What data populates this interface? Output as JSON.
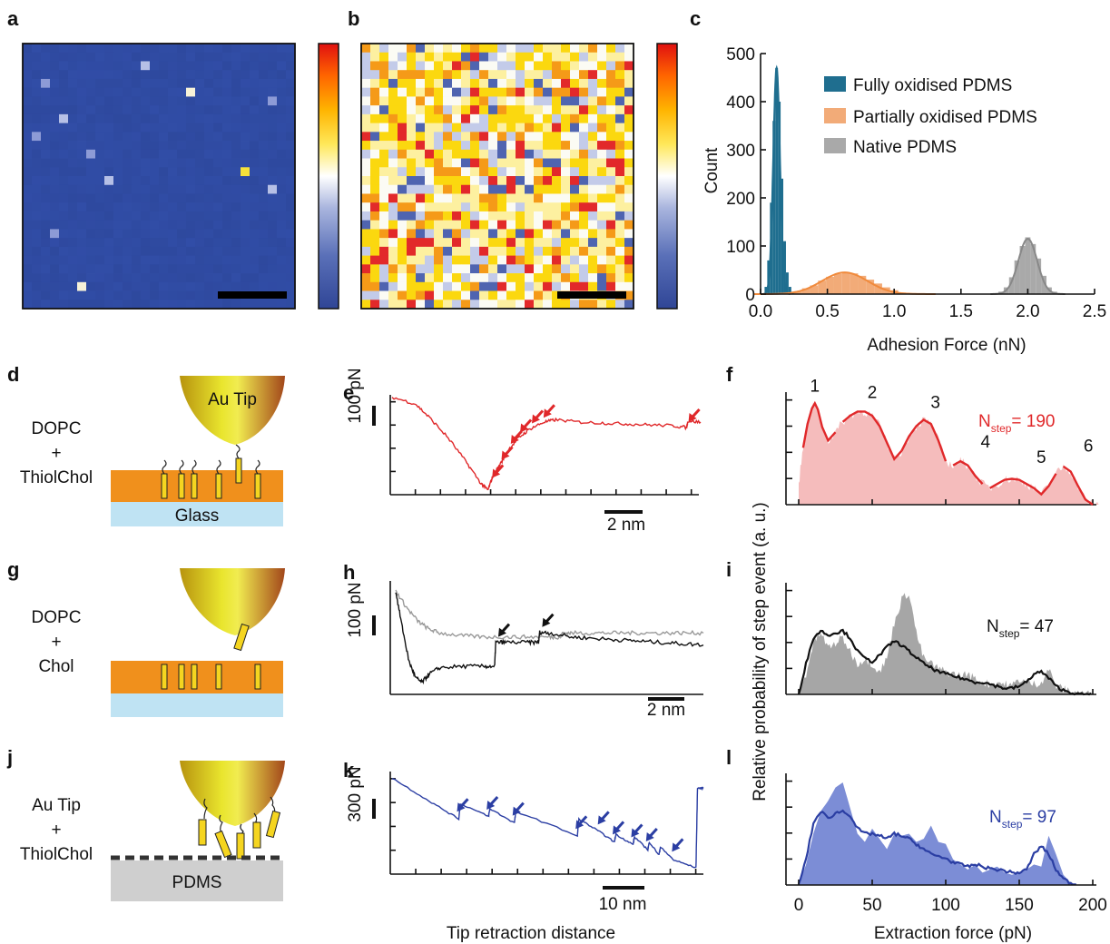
{
  "panel_labels": {
    "a": "a",
    "b": "b",
    "c": "c",
    "d": "d",
    "e": "e",
    "f": "f",
    "g": "g",
    "h": "h",
    "i": "i",
    "j": "j",
    "k": "k",
    "l": "l"
  },
  "colors": {
    "map_blue": "#3f55a5",
    "fully": "#1f6e8f",
    "partial": "#f2ab78",
    "native": "#a9a9a9",
    "red": "#e0282a",
    "pink": "#f5b8b8",
    "gray_fill": "#a6a6a6",
    "blue_line": "#2b3ea3",
    "blue_fill": "#7c8dd6",
    "orange_layer": "#f0901c",
    "glass": "#bfe3f3",
    "pdms": "#cfcfcf",
    "cholesterol": "#f5d520"
  },
  "chart_data": [
    {
      "type": "heatmap",
      "panel": "a",
      "grid": [
        30,
        30
      ],
      "background_value": 0.0,
      "bright_pixels": [
        {
          "col": 13,
          "row": 2,
          "value": 0.25
        },
        {
          "col": 2,
          "row": 4,
          "value": 0.2
        },
        {
          "col": 18,
          "row": 5,
          "value": 0.47
        },
        {
          "col": 27,
          "row": 6,
          "value": 0.2
        },
        {
          "col": 4,
          "row": 8,
          "value": 0.25
        },
        {
          "col": 1,
          "row": 10,
          "value": 0.15
        },
        {
          "col": 7,
          "row": 12,
          "value": 0.22
        },
        {
          "col": 24,
          "row": 14,
          "value": 0.75
        },
        {
          "col": 9,
          "row": 15,
          "value": 0.25
        },
        {
          "col": 27,
          "row": 16,
          "value": 0.3
        },
        {
          "col": 3,
          "row": 21,
          "value": 0.2
        },
        {
          "col": 6,
          "row": 27,
          "value": 0.55
        }
      ],
      "colorbar": [
        "#2f4596",
        "#4f67b3",
        "#8f9fd1",
        "#ffffff",
        "#ffe85a",
        "#ffb400",
        "#ff6e00",
        "#e01010"
      ]
    },
    {
      "type": "heatmap",
      "panel": "b",
      "grid": [
        30,
        30
      ],
      "value_distribution": {
        "white": 0.17,
        "pale_yellow": 0.23,
        "yellow": 0.25,
        "orange": 0.11,
        "red": 0.07,
        "pale_blue": 0.11,
        "blue": 0.06
      },
      "colorbar": [
        "#2f4596",
        "#4f67b3",
        "#8f9fd1",
        "#ffffff",
        "#ffe85a",
        "#ffb400",
        "#ff6e00",
        "#e01010"
      ]
    },
    {
      "type": "bar",
      "panel": "c",
      "xlabel": "Adhesion Force (nN)",
      "ylabel": "Count",
      "xlim": [
        0,
        2.5
      ],
      "ylim": [
        0,
        500
      ],
      "xticks": [
        "0.0",
        "0.5",
        "1.0",
        "1.5",
        "2.0",
        "2.5"
      ],
      "yticks": [
        "0",
        "100",
        "200",
        "300",
        "400",
        "500"
      ],
      "legend_position": "top-right",
      "series": [
        {
          "name": "Fully oxidised PDMS",
          "fit_mean": 0.12,
          "fit_sd": 0.025,
          "fit_peak": 470,
          "x": [
            0.04,
            0.06,
            0.08,
            0.1,
            0.12,
            0.14,
            0.16,
            0.18,
            0.2,
            0.22,
            0.24
          ],
          "values": [
            15,
            70,
            190,
            360,
            470,
            400,
            240,
            110,
            45,
            15,
            5
          ]
        },
        {
          "name": "Partially oxidised PDMS",
          "fit_mean": 0.63,
          "fit_sd": 0.17,
          "fit_peak": 45,
          "x": [
            0.28,
            0.34,
            0.4,
            0.46,
            0.52,
            0.58,
            0.64,
            0.7,
            0.76,
            0.82,
            0.88,
            0.94,
            1.0,
            1.06
          ],
          "values": [
            6,
            12,
            18,
            28,
            36,
            42,
            45,
            43,
            38,
            30,
            22,
            14,
            8,
            3
          ]
        },
        {
          "name": "Native PDMS",
          "fit_mean": 2.0,
          "fit_sd": 0.07,
          "fit_peak": 115,
          "x": [
            1.8,
            1.84,
            1.88,
            1.92,
            1.96,
            2.0,
            2.04,
            2.08,
            2.12,
            2.16,
            2.2
          ],
          "values": [
            5,
            14,
            35,
            70,
            100,
            118,
            104,
            74,
            38,
            14,
            5
          ]
        }
      ]
    },
    {
      "type": "line",
      "panel": "e",
      "scale_bar_y": "100 pN",
      "scale_bar_x": "2 nm",
      "x": [
        0,
        1,
        1.6,
        2.4,
        3.2,
        3.8,
        4.1,
        4.3,
        4.6,
        5.0,
        5.4,
        5.9,
        6.5,
        7.0,
        8,
        9,
        10,
        11,
        12,
        12.6,
        12.65,
        13.2
      ],
      "values": [
        245,
        230,
        200,
        155,
        100,
        55,
        40,
        70,
        95,
        130,
        155,
        175,
        190,
        195,
        190,
        188,
        186,
        184,
        182,
        178,
        192,
        190
      ],
      "arrows_at_x": [
        4.2,
        4.6,
        5.0,
        5.4,
        5.9,
        6.4,
        12.6
      ]
    },
    {
      "type": "bar",
      "panel": "f",
      "xlim": [
        0,
        200
      ],
      "series_label": "N",
      "series_label_sub": "step",
      "count": "= 190",
      "peak_labels": [
        {
          "label": "1",
          "x": 11
        },
        {
          "label": "2",
          "x": 45
        },
        {
          "label": "3",
          "x": 92
        },
        {
          "label": "4",
          "x": 122
        },
        {
          "label": "5",
          "x": 155
        },
        {
          "label": "6",
          "x": 193
        }
      ],
      "x": [
        0,
        3,
        6,
        9,
        11,
        13,
        16,
        20,
        25,
        30,
        35,
        40,
        45,
        50,
        55,
        60,
        65,
        70,
        75,
        80,
        85,
        90,
        95,
        100,
        105,
        110,
        115,
        120,
        125,
        130,
        135,
        140,
        145,
        150,
        155,
        160,
        165,
        170,
        175,
        180,
        185,
        190,
        195,
        200,
        205
      ],
      "values": [
        0.2,
        0.55,
        0.78,
        0.93,
        0.98,
        0.92,
        0.75,
        0.62,
        0.7,
        0.8,
        0.86,
        0.9,
        0.9,
        0.86,
        0.76,
        0.6,
        0.44,
        0.52,
        0.66,
        0.76,
        0.82,
        0.78,
        0.62,
        0.42,
        0.38,
        0.42,
        0.38,
        0.28,
        0.2,
        0.16,
        0.2,
        0.24,
        0.25,
        0.24,
        0.2,
        0.16,
        0.1,
        0.18,
        0.3,
        0.37,
        0.32,
        0.18,
        0.05,
        0.0,
        0.0
      ]
    },
    {
      "type": "line",
      "panel": "h",
      "scale_bar_y": "100 pN",
      "scale_bar_x": "2 nm",
      "series": [
        {
          "name": "",
          "color": "#9a9a9a",
          "x": [
            0,
            0.5,
            1,
            1.5,
            2,
            3,
            4,
            5,
            6,
            7,
            7.5,
            7.6,
            8,
            9,
            10,
            11,
            12,
            13,
            14
          ],
          "values": [
            175,
            150,
            130,
            118,
            112,
            108,
            106,
            106,
            106,
            106,
            106,
            112,
            112,
            112,
            112,
            112,
            112,
            112,
            112
          ]
        },
        {
          "name": "",
          "color": "#111111",
          "x": [
            0,
            0.3,
            0.6,
            0.9,
            1.2,
            1.5,
            2,
            3,
            4,
            4.5,
            4.55,
            5,
            6,
            6.5,
            6.55,
            7,
            8,
            9,
            10,
            11,
            12,
            13,
            14
          ],
          "values": [
            175,
            120,
            70,
            45,
            38,
            50,
            60,
            62,
            62,
            62,
            98,
            98,
            98,
            98,
            113,
            112,
            106,
            104,
            102,
            100,
            98,
            96,
            94
          ]
        }
      ],
      "arrows_at_x": [
        4.5,
        6.5
      ]
    },
    {
      "type": "bar",
      "panel": "i",
      "xlim": [
        0,
        200
      ],
      "series_label": "N",
      "series_label_sub": "step",
      "count": "= 47",
      "x": [
        0,
        5,
        10,
        15,
        20,
        25,
        30,
        35,
        40,
        45,
        50,
        55,
        60,
        65,
        70,
        75,
        80,
        85,
        90,
        95,
        100,
        105,
        110,
        115,
        120,
        125,
        130,
        135,
        140,
        145,
        150,
        155,
        160,
        165,
        170,
        175,
        180,
        185,
        190,
        195,
        200
      ],
      "values": [
        0.0,
        0.2,
        0.5,
        0.6,
        0.45,
        0.5,
        0.55,
        0.42,
        0.3,
        0.35,
        0.3,
        0.22,
        0.35,
        0.7,
        0.92,
        1.0,
        0.6,
        0.35,
        0.3,
        0.25,
        0.22,
        0.2,
        0.18,
        0.2,
        0.15,
        0.12,
        0.1,
        0.12,
        0.1,
        0.08,
        0.15,
        0.12,
        0.1,
        0.12,
        0.25,
        0.08,
        0.05,
        0.03,
        0.02,
        0.0,
        0.0
      ],
      "line_values": [
        0.0,
        0.3,
        0.55,
        0.62,
        0.58,
        0.6,
        0.62,
        0.55,
        0.42,
        0.35,
        0.32,
        0.38,
        0.46,
        0.52,
        0.48,
        0.42,
        0.36,
        0.3,
        0.26,
        0.22,
        0.2,
        0.18,
        0.16,
        0.14,
        0.12,
        0.12,
        0.1,
        0.08,
        0.06,
        0.06,
        0.08,
        0.12,
        0.2,
        0.22,
        0.16,
        0.08,
        0.04,
        0.02,
        0.0,
        0.0,
        0.0
      ]
    },
    {
      "type": "line",
      "panel": "k",
      "scale_bar_y": "300 pN",
      "scale_bar_x": "10 nm",
      "x": [
        0,
        5,
        9,
        9.2,
        13,
        13.2,
        16.5,
        16.7,
        25,
        25.2,
        28,
        30,
        30.2,
        32.5,
        32.7,
        34.5,
        34.7,
        36,
        36.2,
        38,
        41,
        41.2,
        42
      ],
      "values": [
        100,
        82,
        68,
        80,
        70,
        76,
        65,
        74,
        55,
        68,
        58,
        50,
        56,
        48,
        54,
        44,
        50,
        40,
        46,
        36,
        30,
        92,
        92
      ],
      "arrows_at_x": [
        9,
        13,
        16.5,
        25,
        28,
        30,
        32.5,
        34.5,
        38
      ]
    },
    {
      "type": "bar",
      "panel": "l",
      "xlim": [
        0,
        200
      ],
      "xticks": [
        "0",
        "50",
        "100",
        "150",
        "200"
      ],
      "xlabel": "Extraction force  (pN)",
      "series_label": "N",
      "series_label_sub": "step",
      "count": "= 97",
      "x": [
        0,
        5,
        10,
        15,
        20,
        25,
        30,
        35,
        40,
        45,
        50,
        55,
        60,
        65,
        70,
        75,
        80,
        85,
        90,
        95,
        100,
        105,
        110,
        115,
        120,
        125,
        130,
        135,
        140,
        145,
        150,
        155,
        160,
        165,
        170,
        175,
        180,
        185,
        190
      ],
      "values": [
        0.0,
        0.2,
        0.5,
        0.72,
        0.82,
        0.95,
        1.0,
        0.75,
        0.5,
        0.42,
        0.55,
        0.45,
        0.35,
        0.5,
        0.48,
        0.5,
        0.42,
        0.45,
        0.58,
        0.42,
        0.4,
        0.25,
        0.2,
        0.15,
        0.2,
        0.12,
        0.15,
        0.18,
        0.12,
        0.1,
        0.12,
        0.15,
        0.2,
        0.18,
        0.48,
        0.3,
        0.1,
        0.02,
        0.0
      ],
      "line_values": [
        0.0,
        0.25,
        0.6,
        0.72,
        0.65,
        0.7,
        0.72,
        0.68,
        0.55,
        0.5,
        0.5,
        0.48,
        0.45,
        0.5,
        0.48,
        0.45,
        0.4,
        0.35,
        0.3,
        0.28,
        0.26,
        0.22,
        0.2,
        0.18,
        0.2,
        0.18,
        0.16,
        0.15,
        0.14,
        0.12,
        0.12,
        0.15,
        0.3,
        0.38,
        0.3,
        0.15,
        0.06,
        0.02,
        0.0
      ]
    }
  ],
  "c_axis": {
    "xlabel": "Adhesion Force (nN)",
    "ylabel": "Count"
  },
  "shared_axes": {
    "e_h_k_xlabel": "Tip retraction distance",
    "f_i_l_ylabel": "Relative probability of step event (a. u.)"
  },
  "legend_c": {
    "fully": "Fully oxidised PDMS",
    "partial": "Partially oxidised PDMS",
    "native": "Native PDMS"
  },
  "schematics": {
    "d": {
      "label_lines": [
        "DOPC",
        "+",
        "ThiolChol"
      ],
      "tip_label": "Au Tip",
      "substrate_label": "Glass"
    },
    "g": {
      "label_lines": [
        "DOPC",
        "+",
        "Chol"
      ]
    },
    "j": {
      "label_lines": [
        "Au Tip",
        "+",
        "ThiolChol"
      ],
      "substrate_label": "PDMS"
    }
  },
  "scale_labels": {
    "e_y": "100 pN",
    "e_x": "2 nm",
    "h_y": "100 pN",
    "h_x": "2 nm",
    "k_y": "300 pN",
    "k_x": "10 nm"
  },
  "nstep": {
    "f": {
      "n": "N",
      "sub": "step",
      "count": "= 190"
    },
    "i": {
      "n": "N",
      "sub": "step",
      "count": "= 47"
    },
    "l": {
      "n": "N",
      "sub": "step",
      "count": "= 97"
    }
  },
  "f_peaks": [
    "1",
    "2",
    "3",
    "4",
    "5",
    "6"
  ],
  "l_xticks": [
    "0",
    "50",
    "100",
    "150",
    "200"
  ],
  "l_xlabel": "Extraction force  (pN)"
}
